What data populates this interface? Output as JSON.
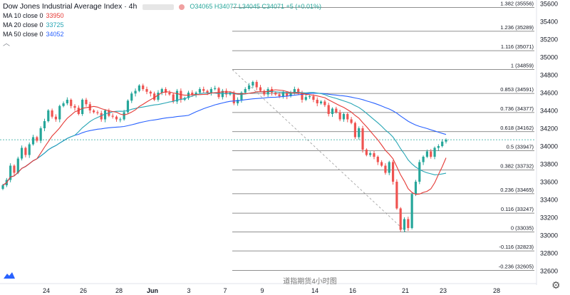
{
  "legend": {
    "title": "Dow Jones Industrial Average Index · 4h",
    "ohlc": "O34065 H34077 L34045 C34071 +5 (+0.01%)",
    "ma10": {
      "label": "MA 10 close 0",
      "value": "33950",
      "color": "#e53935"
    },
    "ma20": {
      "label": "MA 20 close 0",
      "value": "33725",
      "color": "#26a5b4"
    },
    "ma50": {
      "label": "MA 50 close 0",
      "value": "34052",
      "color": "#2962ff"
    }
  },
  "collapse_glyph": "︿",
  "watermark": "道指期货4小时图",
  "chart_data": {
    "type": "candlestick",
    "title": "Dow Jones Industrial Average Index · 4h",
    "x_ticks": [
      "24",
      "26",
      "28",
      "Jun",
      "3",
      "7",
      "9",
      "14",
      "16",
      "21",
      "23",
      "28"
    ],
    "y_ticks": [
      32600,
      32800,
      33000,
      33200,
      33400,
      33600,
      33800,
      34000,
      34200,
      34400,
      34600,
      34800,
      35000,
      35200,
      35400,
      35600
    ],
    "ylim": [
      32560,
      35640
    ],
    "last_price": 34071,
    "fibonacci": {
      "start": 34859,
      "end": 33035,
      "levels": [
        {
          "label": "1.382 (35556)",
          "value": 35556
        },
        {
          "label": "1.236 (35289)",
          "value": 35289
        },
        {
          "label": "1.116 (35071)",
          "value": 35071
        },
        {
          "label": "1 (34859)",
          "value": 34859
        },
        {
          "label": "0.853 (34591)",
          "value": 34591
        },
        {
          "label": "0.736 (34377)",
          "value": 34377
        },
        {
          "label": "0.618 (34162)",
          "value": 34162
        },
        {
          "label": "0.5 (33947)",
          "value": 33947
        },
        {
          "label": "0.382 (33732)",
          "value": 33732
        },
        {
          "label": "0.236 (33465)",
          "value": 33465
        },
        {
          "label": "0.116 (33247)",
          "value": 33247
        },
        {
          "label": "0 (33035)",
          "value": 33035
        },
        {
          "label": "-0.116 (32823)",
          "value": 32823
        },
        {
          "label": "-0.236 (32605)",
          "value": 32605
        }
      ]
    },
    "candles_close": [
      33560,
      33620,
      33780,
      33700,
      33860,
      33980,
      33900,
      34020,
      34100,
      34060,
      34200,
      34280,
      34400,
      34330,
      34300,
      34450,
      34480,
      34520,
      34450,
      34430,
      34360,
      34520,
      34470,
      34400,
      34380,
      34370,
      34300,
      34400,
      34340,
      34330,
      34300,
      34300,
      34380,
      34510,
      34590,
      34620,
      34680,
      34640,
      34610,
      34590,
      34520,
      34600,
      34640,
      34600,
      34580,
      34500,
      34620,
      34520,
      34540,
      34600,
      34580,
      34600,
      34640,
      34620,
      34600,
      34640,
      34650,
      34550,
      34620,
      34580,
      34600,
      34480,
      34520,
      34600,
      34640,
      34680,
      34720,
      34660,
      34620,
      34580,
      34640,
      34600,
      34580,
      34560,
      34600,
      34560,
      34600,
      34640,
      34600,
      34520,
      34550,
      34560,
      34520,
      34480,
      34500,
      34460,
      34360,
      34420,
      34380,
      34300,
      34360,
      34300,
      34260,
      34100,
      34200,
      33960,
      33900,
      33920,
      33880,
      33820,
      33780,
      33700,
      33820,
      33600,
      33300,
      33060,
      33180,
      33080,
      33460,
      33600,
      33820,
      33880,
      33940,
      33880,
      33980,
      34000,
      34050,
      34071
    ]
  }
}
